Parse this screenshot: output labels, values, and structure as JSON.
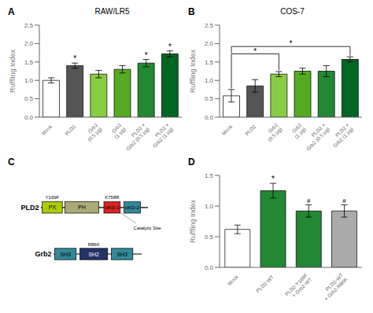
{
  "chart_data": [
    {
      "type": "bar",
      "title": "RAW/LR5",
      "categories": [
        "Mock",
        "PLD2",
        "Grb2\n(0.5 μg)",
        "Grb2\n(1 μg)",
        "PLD2 +\nGrb2 (0.5 μg)",
        "PLD2 +\nGrb2 (1 μg)"
      ],
      "values": [
        1.0,
        1.4,
        1.17,
        1.3,
        1.47,
        1.72
      ],
      "errors": [
        0.07,
        0.07,
        0.1,
        0.1,
        0.1,
        0.08
      ],
      "colors": [
        "#ffffff",
        "#555555",
        "#88cc44",
        "#55aa22",
        "#228833",
        "#006622"
      ],
      "y_label": "Ruffling Index",
      "ylim": [
        0,
        2.5
      ],
      "yticks": [
        {
          "value": 0,
          "label": "0.0"
        },
        0.5,
        {
          "value": 1,
          "label": "1.0"
        },
        1.5,
        {
          "value": 2,
          "label": "2.0"
        },
        2.5
      ],
      "annotations": [
        {
          "text": "A"
        },
        {
          "text": "*",
          "category": "PLD2"
        },
        {
          "text": "*",
          "category": "PLD2 +\nGrb2 (0.5 μg)"
        },
        {
          "text": "*",
          "category": "PLD2 +\nGrb2 (1 μg)"
        }
      ]
    },
    {
      "type": "bar",
      "title": "COS-7",
      "categories": [
        "Mock",
        "PLD2",
        "Grb2\n(0.5 μg)",
        "Grb2\n(1 μg)",
        "PLD2 +\nGrb2 (0.5 μg)",
        "PLD2 +\nGrb2 (1 μg)"
      ],
      "values": [
        0.58,
        0.85,
        1.17,
        1.25,
        1.25,
        1.57
      ],
      "errors": [
        0.17,
        0.17,
        0.07,
        0.08,
        0.15,
        0.07
      ],
      "colors": [
        "#ffffff",
        "#555555",
        "#88cc44",
        "#55aa22",
        "#228833",
        "#006622"
      ],
      "y_label": "Ruffling Index",
      "ylim": [
        0,
        2.5
      ],
      "yticks": [
        {
          "value": 0,
          "label": "0.0"
        },
        0.5,
        {
          "value": 1,
          "label": "1.0"
        },
        1.5,
        {
          "value": 2,
          "label": "2.0"
        },
        2.5
      ],
      "annotations": [
        {
          "text": "B"
        },
        {
          "text": "*",
          "from": "Mock",
          "to": "Grb2\n(0.5 μg)",
          "y": 1.72
        },
        {
          "text": "*",
          "from": "Mock",
          "to": "PLD2 +\nGrb2 (1 μg)",
          "y": 1.92
        }
      ]
    },
    {
      "type": "diagram",
      "series": [
        {
          "name": "PLD2",
          "domains": [
            {
              "name": "PX",
              "color": "#aacc00",
              "mutation": "Y169F"
            },
            {
              "name": "PH",
              "color": "#aaaa77"
            },
            {
              "name": "HKD-1",
              "color": "#dd2222",
              "mutation": "K758R"
            },
            {
              "name": "HKD-2",
              "color": "#338899"
            }
          ]
        },
        {
          "name": "Grb2",
          "domains": [
            {
              "name": "SH3",
              "color": "#338899"
            },
            {
              "name": "SH2",
              "color": "#223366",
              "mutation": "R86K"
            },
            {
              "name": "SH3",
              "color": "#338899"
            }
          ]
        }
      ],
      "annotations": [
        {
          "text": "C"
        },
        {
          "text": "Catalytic Site",
          "domain": "HKD-1"
        }
      ]
    },
    {
      "type": "bar",
      "categories": [
        "Mock",
        "PLD2-WT",
        "PLD2-Y169F\n+ Grb2-WT",
        "PLD2-WT\n+ Grb2-R86K"
      ],
      "values": [
        0.62,
        1.25,
        0.92,
        0.92
      ],
      "errors": [
        0.07,
        0.12,
        0.1,
        0.1
      ],
      "colors": [
        "#ffffff",
        "#228833",
        "#228833",
        "#aaaaaa"
      ],
      "y_label": "Ruffling Index",
      "ylim": [
        0,
        1.5
      ],
      "yticks": [
        {
          "value": 0,
          "label": "0.0"
        },
        0.5,
        {
          "value": 1,
          "label": "1.0"
        },
        1.5
      ],
      "annotations": [
        {
          "text": "D"
        },
        {
          "text": "*",
          "category": "PLD2-WT"
        },
        {
          "text": "#",
          "category": "PLD2-Y169F\n+ Grb2-WT"
        },
        {
          "text": "#",
          "category": "PLD2-WT\n+ Grb2-R86K"
        }
      ]
    }
  ]
}
